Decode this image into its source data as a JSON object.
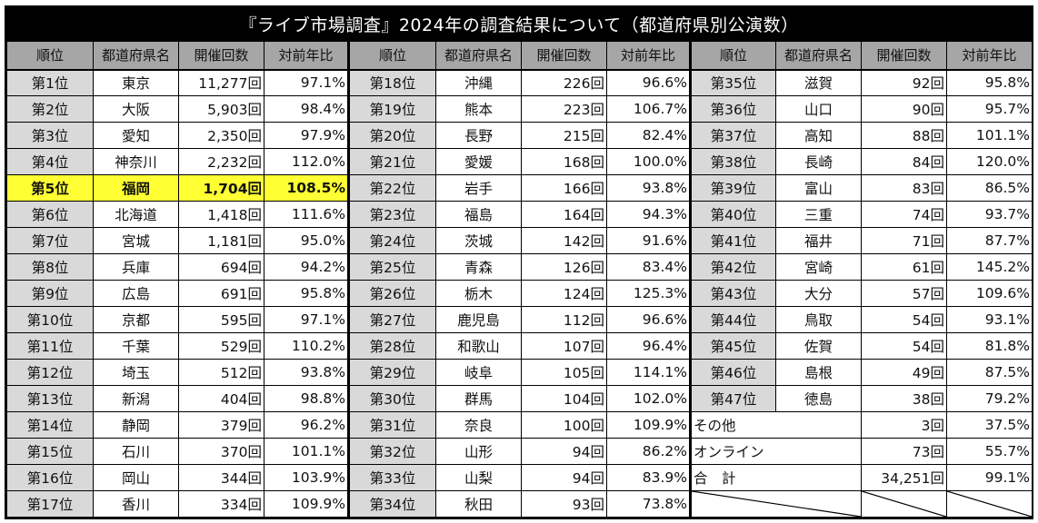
{
  "title": "『ライブ市場調査』2024年の調査結果について（都道府県別公演数）",
  "headers": [
    "順位",
    "都道府県名",
    "開催回数",
    "対前年比"
  ],
  "highlight_color": "#ffff33",
  "group1": [
    {
      "rank": "第1位",
      "pref": "東京",
      "count": "11,277回",
      "ratio": "97.1%"
    },
    {
      "rank": "第2位",
      "pref": "大阪",
      "count": "5,903回",
      "ratio": "98.4%"
    },
    {
      "rank": "第3位",
      "pref": "愛知",
      "count": "2,350回",
      "ratio": "97.9%"
    },
    {
      "rank": "第4位",
      "pref": "神奈川",
      "count": "2,232回",
      "ratio": "112.0%"
    },
    {
      "rank": "第5位",
      "pref": "福岡",
      "count": "1,704回",
      "ratio": "108.5%",
      "highlight": true
    },
    {
      "rank": "第6位",
      "pref": "北海道",
      "count": "1,418回",
      "ratio": "111.6%"
    },
    {
      "rank": "第7位",
      "pref": "宮城",
      "count": "1,181回",
      "ratio": "95.0%"
    },
    {
      "rank": "第8位",
      "pref": "兵庫",
      "count": "694回",
      "ratio": "94.2%"
    },
    {
      "rank": "第9位",
      "pref": "広島",
      "count": "691回",
      "ratio": "95.8%"
    },
    {
      "rank": "第10位",
      "pref": "京都",
      "count": "595回",
      "ratio": "97.1%"
    },
    {
      "rank": "第11位",
      "pref": "千葉",
      "count": "529回",
      "ratio": "110.2%"
    },
    {
      "rank": "第12位",
      "pref": "埼玉",
      "count": "512回",
      "ratio": "93.8%"
    },
    {
      "rank": "第13位",
      "pref": "新潟",
      "count": "404回",
      "ratio": "98.8%"
    },
    {
      "rank": "第14位",
      "pref": "静岡",
      "count": "379回",
      "ratio": "96.2%"
    },
    {
      "rank": "第15位",
      "pref": "石川",
      "count": "370回",
      "ratio": "101.1%"
    },
    {
      "rank": "第16位",
      "pref": "岡山",
      "count": "344回",
      "ratio": "103.9%"
    },
    {
      "rank": "第17位",
      "pref": "香川",
      "count": "334回",
      "ratio": "109.9%"
    }
  ],
  "group2": [
    {
      "rank": "第18位",
      "pref": "沖縄",
      "count": "226回",
      "ratio": "96.6%"
    },
    {
      "rank": "第19位",
      "pref": "熊本",
      "count": "223回",
      "ratio": "106.7%"
    },
    {
      "rank": "第20位",
      "pref": "長野",
      "count": "215回",
      "ratio": "82.4%"
    },
    {
      "rank": "第21位",
      "pref": "愛媛",
      "count": "168回",
      "ratio": "100.0%"
    },
    {
      "rank": "第22位",
      "pref": "岩手",
      "count": "166回",
      "ratio": "93.8%"
    },
    {
      "rank": "第23位",
      "pref": "福島",
      "count": "164回",
      "ratio": "94.3%"
    },
    {
      "rank": "第24位",
      "pref": "茨城",
      "count": "142回",
      "ratio": "91.6%"
    },
    {
      "rank": "第25位",
      "pref": "青森",
      "count": "126回",
      "ratio": "83.4%"
    },
    {
      "rank": "第26位",
      "pref": "栃木",
      "count": "124回",
      "ratio": "125.3%"
    },
    {
      "rank": "第27位",
      "pref": "鹿児島",
      "count": "112回",
      "ratio": "96.6%"
    },
    {
      "rank": "第28位",
      "pref": "和歌山",
      "count": "107回",
      "ratio": "96.4%"
    },
    {
      "rank": "第29位",
      "pref": "岐阜",
      "count": "105回",
      "ratio": "114.1%"
    },
    {
      "rank": "第30位",
      "pref": "群馬",
      "count": "104回",
      "ratio": "102.0%"
    },
    {
      "rank": "第31位",
      "pref": "奈良",
      "count": "100回",
      "ratio": "109.9%"
    },
    {
      "rank": "第32位",
      "pref": "山形",
      "count": "94回",
      "ratio": "86.2%"
    },
    {
      "rank": "第33位",
      "pref": "山梨",
      "count": "94回",
      "ratio": "83.9%"
    },
    {
      "rank": "第34位",
      "pref": "秋田",
      "count": "93回",
      "ratio": "73.8%"
    }
  ],
  "group3": [
    {
      "rank": "第35位",
      "pref": "滋賀",
      "count": "92回",
      "ratio": "95.8%"
    },
    {
      "rank": "第36位",
      "pref": "山口",
      "count": "90回",
      "ratio": "95.7%"
    },
    {
      "rank": "第37位",
      "pref": "高知",
      "count": "88回",
      "ratio": "101.1%"
    },
    {
      "rank": "第38位",
      "pref": "長崎",
      "count": "84回",
      "ratio": "120.0%"
    },
    {
      "rank": "第39位",
      "pref": "富山",
      "count": "83回",
      "ratio": "86.5%"
    },
    {
      "rank": "第40位",
      "pref": "三重",
      "count": "74回",
      "ratio": "93.7%"
    },
    {
      "rank": "第41位",
      "pref": "福井",
      "count": "71回",
      "ratio": "87.7%"
    },
    {
      "rank": "第42位",
      "pref": "宮崎",
      "count": "61回",
      "ratio": "145.2%"
    },
    {
      "rank": "第43位",
      "pref": "大分",
      "count": "57回",
      "ratio": "109.6%"
    },
    {
      "rank": "第44位",
      "pref": "鳥取",
      "count": "54回",
      "ratio": "93.1%"
    },
    {
      "rank": "第45位",
      "pref": "佐賀",
      "count": "54回",
      "ratio": "81.8%"
    },
    {
      "rank": "第46位",
      "pref": "島根",
      "count": "49回",
      "ratio": "87.5%"
    },
    {
      "rank": "第47位",
      "pref": "徳島",
      "count": "38回",
      "ratio": "79.2%"
    }
  ],
  "extras": [
    {
      "label": "その他",
      "count": "3回",
      "ratio": "37.5%"
    },
    {
      "label": "オンライン",
      "count": "73回",
      "ratio": "55.7%"
    },
    {
      "label": "合　計",
      "count": "34,251回",
      "ratio": "99.1%"
    }
  ]
}
